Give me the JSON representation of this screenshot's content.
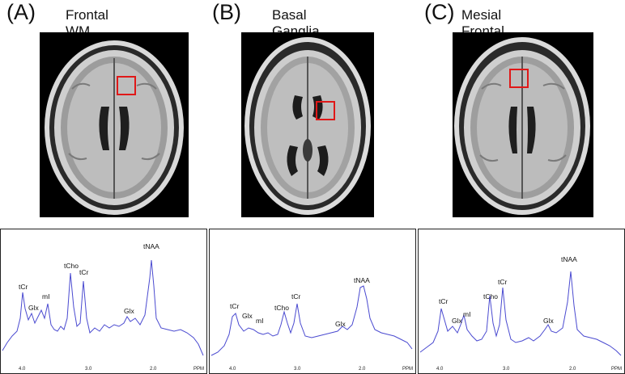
{
  "panels": [
    {
      "label": "(A)",
      "title": "Frontal WM",
      "peaks": [
        {
          "label": "tCr",
          "ppm": 3.92
        },
        {
          "label": "Glx",
          "ppm": 3.75
        },
        {
          "label": "mI",
          "ppm": 3.56
        },
        {
          "label": "tCho",
          "ppm": 3.22
        },
        {
          "label": "tCr",
          "ppm": 3.03
        },
        {
          "label": "Glx",
          "ppm": 2.35
        },
        {
          "label": "tNAA",
          "ppm": 2.01
        }
      ],
      "ticks": [
        "4.0",
        "3.0",
        "2.0"
      ],
      "unit": "PPM"
    },
    {
      "label": "(B)",
      "title": "Basal Ganglia",
      "peaks": [
        {
          "label": "tCr",
          "ppm": 3.92
        },
        {
          "label": "Glx",
          "ppm": 3.75
        },
        {
          "label": "mI",
          "ppm": 3.56
        },
        {
          "label": "tCho",
          "ppm": 3.22
        },
        {
          "label": "tCr",
          "ppm": 3.03
        },
        {
          "label": "Glx",
          "ppm": 2.35
        },
        {
          "label": "tNAA",
          "ppm": 2.01
        }
      ],
      "ticks": [
        "4.0",
        "3.0",
        "2.0"
      ],
      "unit": "PPM"
    },
    {
      "label": "(C)",
      "title": "Mesial Frontal GM",
      "peaks": [
        {
          "label": "tCr",
          "ppm": 3.92
        },
        {
          "label": "Glx",
          "ppm": 3.75
        },
        {
          "label": "mI",
          "ppm": 3.56
        },
        {
          "label": "tCho",
          "ppm": 3.22
        },
        {
          "label": "tCr",
          "ppm": 3.03
        },
        {
          "label": "Glx",
          "ppm": 2.35
        },
        {
          "label": "tNAA",
          "ppm": 2.01
        }
      ],
      "ticks": [
        "4.0",
        "3.0",
        "2.0"
      ],
      "unit": "PPM"
    }
  ],
  "colors": {
    "spectrum_line": "#4a4ad0",
    "roi_box": "#e01818"
  }
}
